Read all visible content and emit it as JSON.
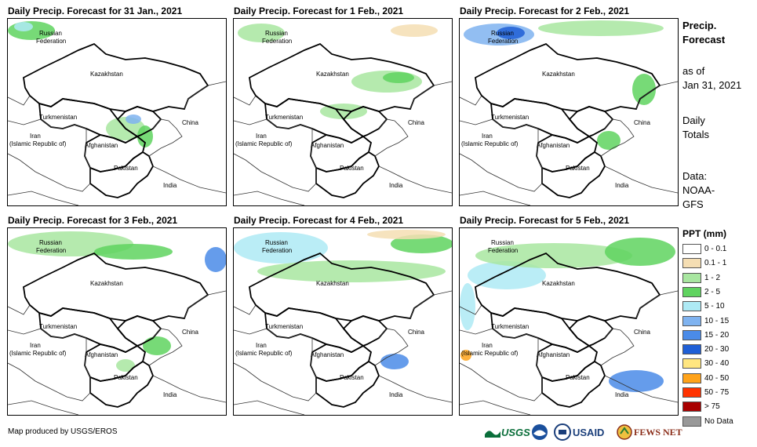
{
  "panels": [
    {
      "title": "Daily Precip. Forecast for 31 Jan., 2021"
    },
    {
      "title": "Daily Precip. Forecast for 1 Feb., 2021"
    },
    {
      "title": "Daily Precip. Forecast for 2 Feb., 2021"
    },
    {
      "title": "Daily Precip. Forecast for 3 Feb., 2021"
    },
    {
      "title": "Daily Precip. Forecast for 4 Feb., 2021"
    },
    {
      "title": "Daily Precip. Forecast for 5 Feb., 2021"
    }
  ],
  "countries": {
    "russia_1": "Russian",
    "russia_2": "Federation",
    "kazakhstan": "Kazakhstan",
    "turkmenistan": "Turkmenistan",
    "iran_1": "Iran",
    "iran_2": "(Islamic Republic of)",
    "afghanistan": "Afghanistan",
    "pakistan": "Pakistan",
    "china": "China",
    "india": "India"
  },
  "sidebar": {
    "title_1": "Precip.",
    "title_2": "Forecast",
    "as_of_1": "as of",
    "as_of_2": "Jan 31, 2021",
    "daily_1": "Daily",
    "daily_2": "Totals",
    "data_1": "Data:",
    "data_2": "NOAA-",
    "data_3": "GFS"
  },
  "legend": {
    "title": "PPT (mm)",
    "items": [
      {
        "label": "0 - 0.1",
        "color": "#ffffff"
      },
      {
        "label": "0.1 - 1",
        "color": "#f5deb3"
      },
      {
        "label": "1 - 2",
        "color": "#a8e6a0"
      },
      {
        "label": "2 - 5",
        "color": "#5fd35f"
      },
      {
        "label": "5 - 10",
        "color": "#aeeaf5"
      },
      {
        "label": "10 - 15",
        "color": "#7fb3f0"
      },
      {
        "label": "15 - 20",
        "color": "#4a8be8"
      },
      {
        "label": "20 - 30",
        "color": "#1f5fd6"
      },
      {
        "label": "30 - 40",
        "color": "#ffe680"
      },
      {
        "label": "40 - 50",
        "color": "#ffa31a"
      },
      {
        "label": "50 - 75",
        "color": "#ff3300"
      },
      {
        "label": "> 75",
        "color": "#a80000"
      },
      {
        "label": "No Data",
        "color": "#999999"
      }
    ]
  },
  "credit": "Map produced by USGS/EROS",
  "logos": {
    "usgs": "USGS",
    "usaid": "USAID",
    "fewsnet": "FEWS NET"
  }
}
